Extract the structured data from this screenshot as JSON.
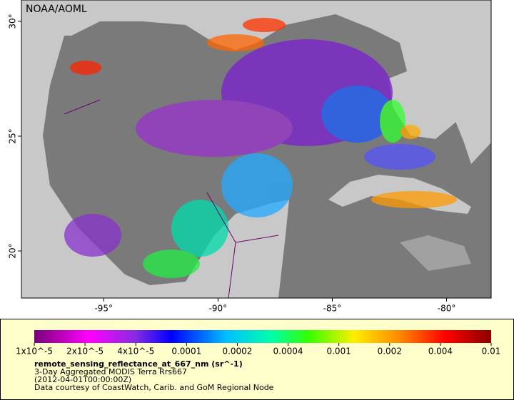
{
  "map": {
    "credit": "NOAA/AOML",
    "xlim": [
      -98.6,
      -78.05
    ],
    "ylim": [
      17.95,
      30.93
    ],
    "lon_ticks": [
      {
        "value": -95,
        "label": "-95°"
      },
      {
        "value": -90,
        "label": "-90°"
      },
      {
        "value": -85,
        "label": "-85°"
      },
      {
        "value": -80,
        "label": "-80°"
      }
    ],
    "lat_ticks": [
      {
        "value": 30,
        "label": "30°"
      },
      {
        "value": 25,
        "label": "25°"
      },
      {
        "value": 20,
        "label": "20°"
      }
    ]
  },
  "legend": {
    "log_scale": true,
    "ticks": [
      {
        "value": 1e-05,
        "label": "1x10^-5"
      },
      {
        "value": 2e-05,
        "label": "2x10^-5"
      },
      {
        "value": 4e-05,
        "label": "4x10^-5"
      },
      0.0001,
      0.0002,
      0.0004,
      0.001,
      0.002,
      0.004,
      0.01
    ],
    "title": "remote_sensing_reflectance_at_667_nm (sr^-1)",
    "lines": [
      "3-Day Aggregated MODIS Terra Rrs667",
      "(2012-04-01T00:00:00Z)",
      "Data courtesy of CoastWatch, Carib. and GoM Regional Node"
    ]
  }
}
